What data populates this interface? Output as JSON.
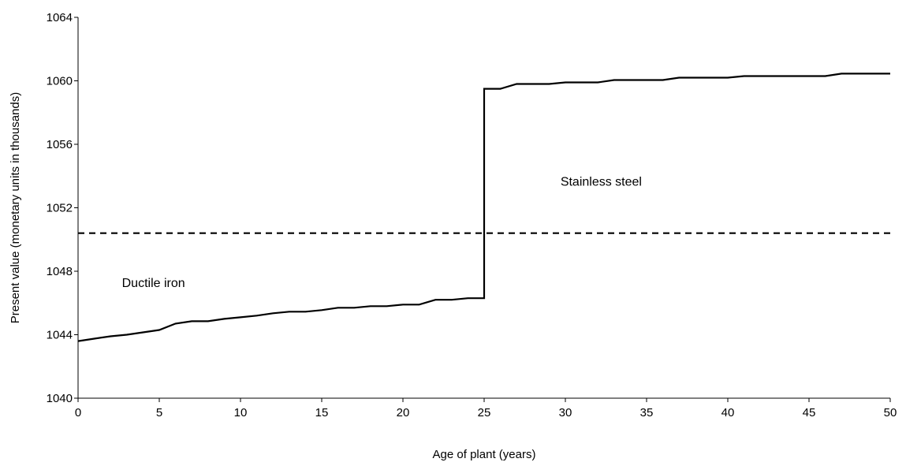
{
  "chart_data": {
    "type": "line",
    "title": "",
    "xlabel": "Age of plant (years)",
    "ylabel": "Present value (monetary units in thousands)",
    "xlim": [
      0,
      50
    ],
    "ylim": [
      1040,
      1064
    ],
    "xticks": [
      0,
      5,
      10,
      15,
      20,
      25,
      30,
      35,
      40,
      45,
      50
    ],
    "yticks": [
      1040,
      1044,
      1048,
      1052,
      1056,
      1060,
      1064
    ],
    "grid": false,
    "legend": "none",
    "series": [
      {
        "style": "solid",
        "color": "#000000",
        "points": [
          [
            0,
            1043.6
          ],
          [
            1,
            1043.75
          ],
          [
            2,
            1043.9
          ],
          [
            3,
            1044.0
          ],
          [
            4,
            1044.15
          ],
          [
            5,
            1044.3
          ],
          [
            6,
            1044.7
          ],
          [
            7,
            1044.85
          ],
          [
            8,
            1044.85
          ],
          [
            9,
            1045.0
          ],
          [
            10,
            1045.1
          ],
          [
            11,
            1045.2
          ],
          [
            12,
            1045.35
          ],
          [
            13,
            1045.45
          ],
          [
            14,
            1045.45
          ],
          [
            15,
            1045.55
          ],
          [
            16,
            1045.7
          ],
          [
            17,
            1045.7
          ],
          [
            18,
            1045.8
          ],
          [
            19,
            1045.8
          ],
          [
            20,
            1045.9
          ],
          [
            21,
            1045.9
          ],
          [
            22,
            1046.2
          ],
          [
            23,
            1046.2
          ],
          [
            24,
            1046.3
          ],
          [
            25,
            1046.3
          ],
          [
            25,
            1059.5
          ],
          [
            26,
            1059.5
          ],
          [
            27,
            1059.8
          ],
          [
            28,
            1059.8
          ],
          [
            29,
            1059.8
          ],
          [
            30,
            1059.9
          ],
          [
            31,
            1059.9
          ],
          [
            32,
            1059.9
          ],
          [
            33,
            1060.05
          ],
          [
            34,
            1060.05
          ],
          [
            35,
            1060.05
          ],
          [
            36,
            1060.05
          ],
          [
            37,
            1060.2
          ],
          [
            38,
            1060.2
          ],
          [
            39,
            1060.2
          ],
          [
            40,
            1060.2
          ],
          [
            41,
            1060.3
          ],
          [
            42,
            1060.3
          ],
          [
            43,
            1060.3
          ],
          [
            44,
            1060.3
          ],
          [
            45,
            1060.3
          ],
          [
            46,
            1060.3
          ],
          [
            47,
            1060.45
          ],
          [
            48,
            1060.45
          ],
          [
            49,
            1060.45
          ],
          [
            50,
            1060.45
          ]
        ]
      },
      {
        "style": "dashed",
        "color": "#000000",
        "points": [
          [
            0,
            1050.4
          ],
          [
            50,
            1050.4
          ]
        ]
      }
    ],
    "annotations": [
      {
        "text": "Ductile iron",
        "x": 2.7,
        "y": 1047.0
      },
      {
        "text": "Stainless steel",
        "x": 29.7,
        "y": 1053.4
      }
    ]
  }
}
